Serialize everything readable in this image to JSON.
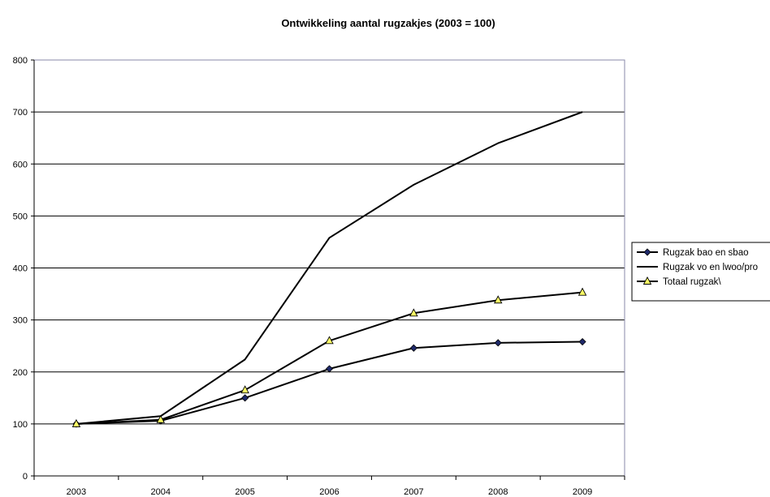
{
  "chart_data": {
    "type": "line",
    "title": "Ontwikkeling aantal rugzakjes (2003 = 100)",
    "xlabel": "",
    "ylabel": "",
    "categories": [
      "2003",
      "2004",
      "2005",
      "2006",
      "2007",
      "2008",
      "2009"
    ],
    "ylim": [
      0,
      800
    ],
    "yticks": [
      0,
      100,
      200,
      300,
      400,
      500,
      600,
      700,
      800
    ],
    "grid": "horizontal",
    "legend": "right",
    "series": [
      {
        "name": "Rugzak bao en sbao",
        "marker": "diamond",
        "marker_color": "#1f2a6b",
        "values": [
          100,
          106,
          150,
          206,
          246,
          256,
          258
        ]
      },
      {
        "name": "Rugzak vo en lwoo/pro",
        "marker": "none",
        "marker_color": "#000000",
        "values": [
          100,
          115,
          224,
          458,
          560,
          640,
          700
        ]
      },
      {
        "name": "Totaal rugzak\\",
        "marker": "triangle",
        "marker_color": "#ffff66",
        "values": [
          100,
          108,
          165,
          260,
          313,
          338,
          353
        ]
      }
    ]
  }
}
